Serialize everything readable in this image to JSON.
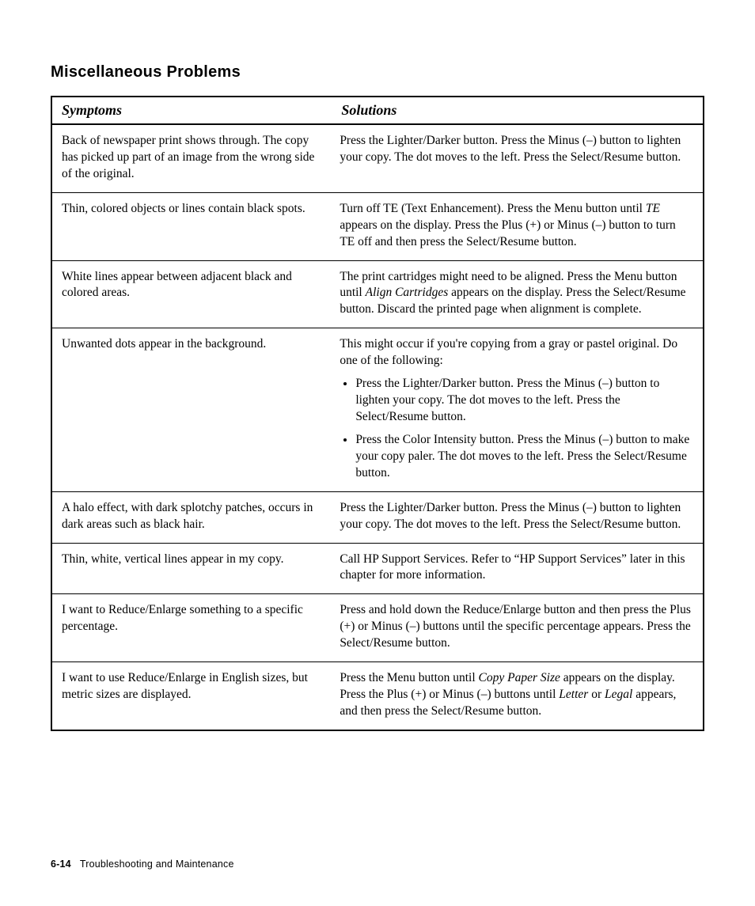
{
  "section_title": "Miscellaneous Problems",
  "columns": {
    "symptom": "Symptoms",
    "solution": "Solutions"
  },
  "rows": [
    {
      "symptom": "Back of newspaper print shows through. The copy has picked up part of an image from the wrong side of the original.",
      "solution": "Press the Lighter/Darker button. Press the Minus (–) button to lighten your copy. The dot moves to the left. Press the Select/Resume button."
    },
    {
      "symptom": "Thin, colored objects or lines contain black spots.",
      "solution_pre": "Turn off TE (Text Enhancement). Press the Menu button until ",
      "solution_em": "TE",
      "solution_post": " appears on the display. Press the Plus (+) or Minus (–) button to turn TE off and then press the Select/Resume button."
    },
    {
      "symptom": "White lines appear between adjacent black and colored areas.",
      "solution_pre": "The print cartridges might need to be aligned. Press the Menu button until ",
      "solution_em": "Align Cartridges",
      "solution_post": " appears on the display. Press the Select/Resume button. Discard the printed page when alignment is complete."
    },
    {
      "symptom": "Unwanted dots appear in the background.",
      "solution_intro": "This might occur if you're copying from a gray or pastel original. Do one of the following:",
      "bullets": [
        "Press the Lighter/Darker button. Press the Minus (–) button to lighten your copy. The dot moves to the left. Press the Select/Resume button.",
        "Press the Color Intensity button. Press the Minus (–) button to make your copy paler. The dot moves to the left. Press the Select/Resume button."
      ]
    },
    {
      "symptom": "A halo effect, with dark splotchy patches, occurs in dark areas such as black hair.",
      "solution": "Press the Lighter/Darker button. Press the Minus (–) button to lighten your copy. The dot moves to the left. Press the Select/Resume button."
    },
    {
      "symptom": "Thin, white, vertical lines appear in my copy.",
      "solution": "Call HP Support Services. Refer to “HP Support Services” later in this chapter for more information."
    },
    {
      "symptom": "I want to Reduce/Enlarge something to a specific percentage.",
      "solution": "Press and hold down the Reduce/Enlarge button and then press the Plus (+) or Minus (–) buttons until the specific percentage appears. Press the Select/Resume button."
    },
    {
      "symptom": "I want to use Reduce/Enlarge in English sizes, but metric sizes are displayed.",
      "solution_pre": "Press the Menu button until ",
      "solution_em": "Copy Paper Size",
      "solution_mid": " appears on the display. Press the Plus (+) or Minus (–) buttons until ",
      "solution_em2": "Letter",
      "solution_mid2": " or ",
      "solution_em3": "Legal",
      "solution_post": " appears, and then press the Select/Resume button."
    }
  ],
  "footer": {
    "page_number": "6-14",
    "section": "Troubleshooting and Maintenance"
  }
}
